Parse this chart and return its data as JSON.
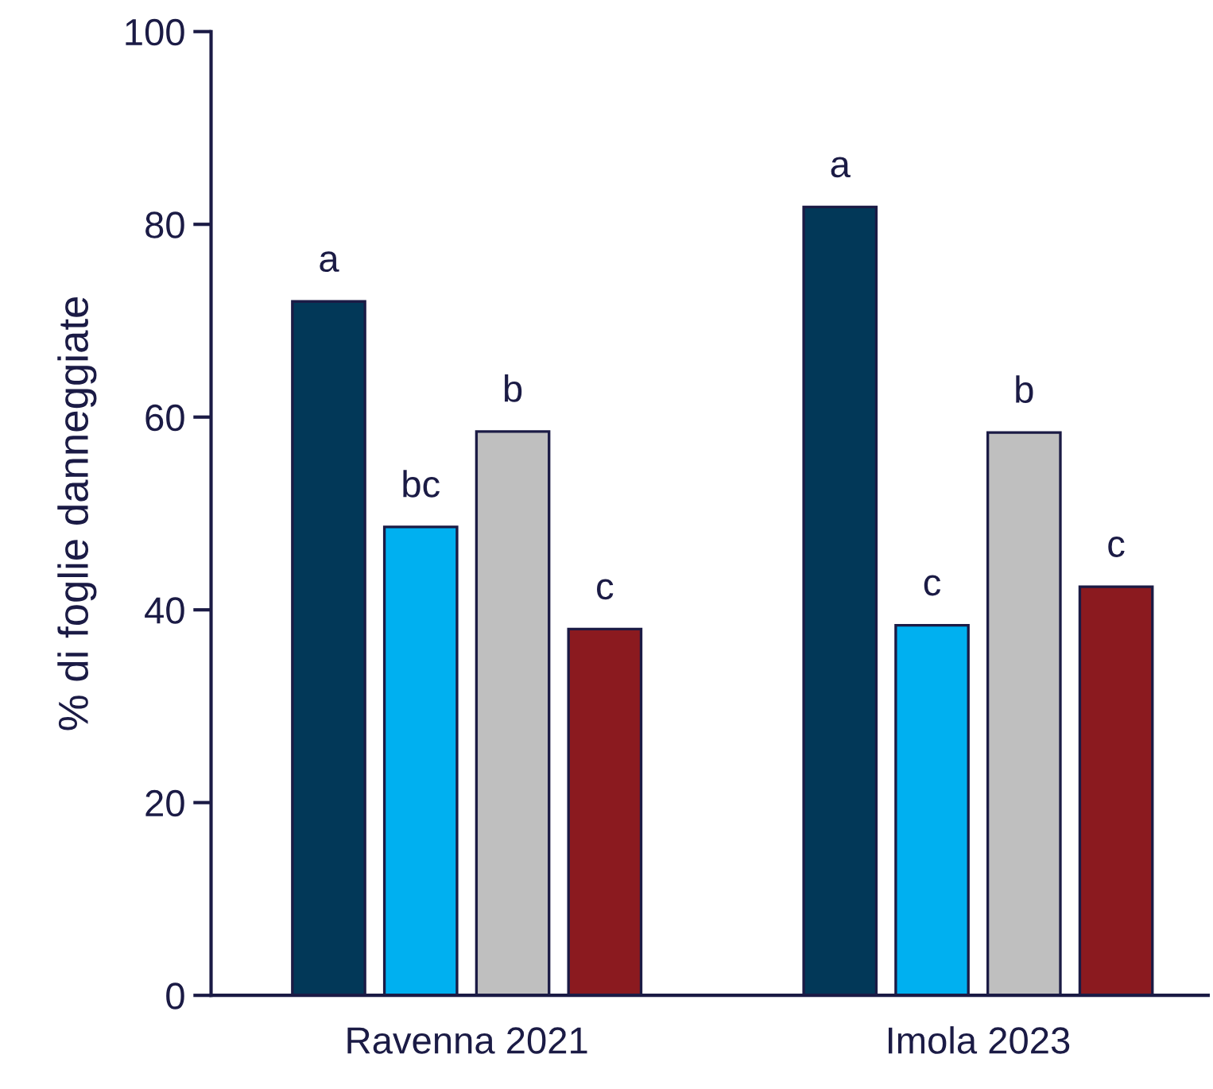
{
  "chart_data": {
    "type": "bar",
    "ylabel": "% di foglie danneggiate",
    "categories": [
      "Ravenna 2021",
      "Imola 2023"
    ],
    "series": [
      {
        "color": "#023858",
        "values": [
          72,
          81.8
        ],
        "value_labels": [
          "a",
          "a"
        ]
      },
      {
        "color": "#00b0f0",
        "values": [
          48.6,
          38.4
        ],
        "value_labels": [
          "bc",
          "c"
        ]
      },
      {
        "color": "#bfbfbf",
        "values": [
          58.5,
          58.4
        ],
        "value_labels": [
          "b",
          "b"
        ]
      },
      {
        "color": "#8b1a1f",
        "values": [
          38.0,
          42.4
        ],
        "value_labels": [
          "c",
          "c"
        ]
      }
    ],
    "ylim": [
      0,
      100
    ],
    "yticks": [
      0,
      20,
      40,
      60,
      80,
      100
    ],
    "grid": false,
    "legend": false
  }
}
